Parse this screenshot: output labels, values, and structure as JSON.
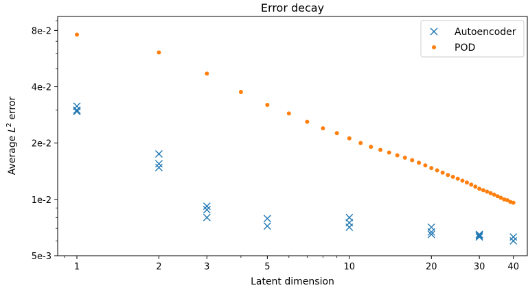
{
  "chart_data": {
    "type": "scatter",
    "title": "Error decay",
    "xlabel": "Latent dimension",
    "ylabel_prefix": "Average ",
    "ylabel_L": "L",
    "ylabel_sup": "2",
    "ylabel_suffix": " error",
    "xscale": "log",
    "yscale": "log",
    "xlim": [
      0.85,
      45
    ],
    "ylim": [
      0.005,
      0.095
    ],
    "xticks": [
      1,
      2,
      3,
      5,
      10,
      20,
      30,
      40
    ],
    "xtick_labels": [
      "1",
      "2",
      "3",
      "5",
      "10",
      "20",
      "30",
      "40"
    ],
    "yticks": [
      0.005,
      0.01,
      0.02,
      0.04,
      0.08
    ],
    "ytick_labels": [
      "5e-3",
      "1e-2",
      "2e-2",
      "4e-2",
      "8e-2"
    ],
    "grid": false,
    "legend_position": "top-right",
    "series": [
      {
        "name": "Autoencoder",
        "marker": "x",
        "color": "#1f77b4",
        "points": [
          [
            1,
            0.0315
          ],
          [
            1,
            0.03
          ],
          [
            1,
            0.0295
          ],
          [
            2,
            0.0175
          ],
          [
            2,
            0.0155
          ],
          [
            2,
            0.0148
          ],
          [
            3,
            0.0092
          ],
          [
            3,
            0.0088
          ],
          [
            3,
            0.008
          ],
          [
            5,
            0.0079
          ],
          [
            5,
            0.0072
          ],
          [
            10,
            0.008
          ],
          [
            10,
            0.0075
          ],
          [
            10,
            0.0071
          ],
          [
            20,
            0.0071
          ],
          [
            20,
            0.0067
          ],
          [
            20,
            0.0065
          ],
          [
            30,
            0.0065
          ],
          [
            30,
            0.0064
          ],
          [
            30,
            0.0063
          ],
          [
            40,
            0.0063
          ],
          [
            40,
            0.006
          ]
        ]
      },
      {
        "name": "POD",
        "marker": "dot",
        "color": "#ff7f0e",
        "points": [
          [
            1,
            0.076
          ],
          [
            2,
            0.061
          ],
          [
            3,
            0.047
          ],
          [
            4,
            0.0375
          ],
          [
            5,
            0.032
          ],
          [
            6,
            0.0288
          ],
          [
            7,
            0.026
          ],
          [
            8,
            0.024
          ],
          [
            9,
            0.0226
          ],
          [
            10,
            0.0212
          ],
          [
            11,
            0.02
          ],
          [
            12,
            0.0191
          ],
          [
            13,
            0.0184
          ],
          [
            14,
            0.0178
          ],
          [
            15,
            0.0172
          ],
          [
            16,
            0.0167
          ],
          [
            17,
            0.0162
          ],
          [
            18,
            0.0157
          ],
          [
            19,
            0.0152
          ],
          [
            20,
            0.0147
          ],
          [
            21,
            0.0143
          ],
          [
            22,
            0.0139
          ],
          [
            23,
            0.0135
          ],
          [
            24,
            0.0132
          ],
          [
            25,
            0.0129
          ],
          [
            26,
            0.0126
          ],
          [
            27,
            0.0123
          ],
          [
            28,
            0.012
          ],
          [
            29,
            0.0117
          ],
          [
            30,
            0.0114
          ],
          [
            31,
            0.0112
          ],
          [
            32,
            0.011
          ],
          [
            33,
            0.0108
          ],
          [
            34,
            0.0106
          ],
          [
            35,
            0.0104
          ],
          [
            36,
            0.0102
          ],
          [
            37,
            0.01
          ],
          [
            38,
            0.0099
          ],
          [
            39,
            0.0097
          ],
          [
            40,
            0.0096
          ]
        ]
      }
    ]
  }
}
